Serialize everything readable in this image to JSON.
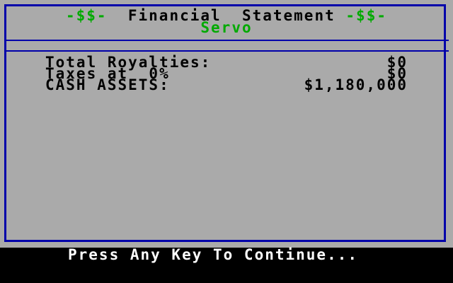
{
  "header": {
    "title_left": "-$$-",
    "title": "Financial  Statement",
    "title_right": "-$$-",
    "subtitle": "Servo"
  },
  "statement": [
    {
      "label": "Total Royalties:",
      "value": "$0"
    },
    {
      "label": "Taxes at  0%",
      "value": "$0"
    },
    {
      "label": "CASH ASSETS:",
      "value": "$1,180,000"
    }
  ],
  "footer": {
    "prompt": "Press Any Key To Continue..."
  },
  "colors": {
    "background": "#aaaaaa",
    "border": "#0000aa",
    "accent": "#00aa00",
    "text": "#000000",
    "prompt_text": "#ffffff",
    "footer_bg": "#000000"
  }
}
